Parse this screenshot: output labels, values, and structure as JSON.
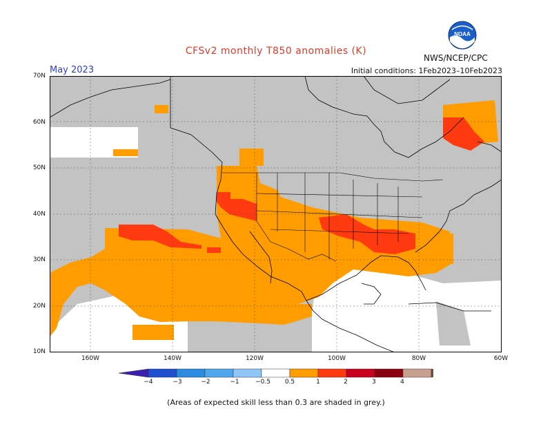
{
  "header": {
    "title": "CFSv2 monthly T850 anomalies (K)",
    "month": "May 2023",
    "agency": "NWS/NCEP/CPC",
    "initial_conditions": "Initial conditions: 1Feb2023–10Feb2023",
    "logo_text": "NOAA"
  },
  "axes": {
    "lat_labels": [
      "70N",
      "60N",
      "50N",
      "40N",
      "30N",
      "20N",
      "10N"
    ],
    "lon_labels": [
      "160W",
      "140W",
      "120W",
      "100W",
      "80W",
      "60W"
    ]
  },
  "colorbar": {
    "labels": [
      "−4",
      "−3",
      "−2",
      "−1",
      "−0.5",
      "0.5",
      "1",
      "2",
      "3",
      "4"
    ],
    "colors": [
      "#3a1fb0",
      "#1f4fcf",
      "#2b8be0",
      "#4fa6ec",
      "#8fc6f6",
      "#ffffff",
      "#ff9d00",
      "#ff3a10",
      "#c8001e",
      "#8a0010",
      "#c8a090",
      "#7a4a3a"
    ]
  },
  "footnote": "(Areas of expected skill less than 0.3 are shaded in grey.)"
}
